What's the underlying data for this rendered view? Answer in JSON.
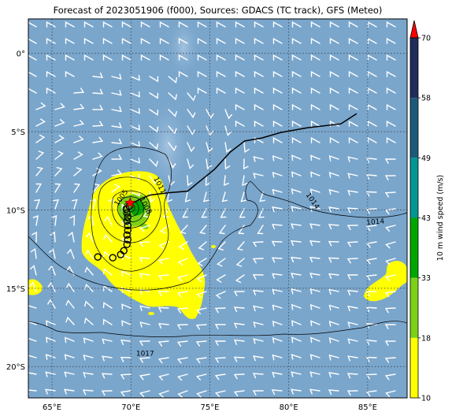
{
  "title": "Forecast of 2023051906 (f000), Sources: GDACS (TC track), GFS (Meteo)",
  "map": {
    "lon_range": [
      63.5,
      87.5
    ],
    "lat_range": [
      -22,
      2.2
    ],
    "lon_ticks": [
      {
        "lon": 65,
        "label": "65°E"
      },
      {
        "lon": 70,
        "label": "70°E"
      },
      {
        "lon": 75,
        "label": "75°E"
      },
      {
        "lon": 80,
        "label": "80°E"
      },
      {
        "lon": 85,
        "label": "85°E"
      }
    ],
    "lat_ticks": [
      {
        "lat": 0,
        "label": "0°"
      },
      {
        "lat": -5,
        "label": "5°S"
      },
      {
        "lat": -10,
        "label": "10°S"
      },
      {
        "lat": -15,
        "label": "15°S"
      },
      {
        "lat": -20,
        "label": "20°S"
      }
    ],
    "grid": "dotted",
    "background_color": "#7aa6cc",
    "tc_track": [
      [
        84.3,
        -3.85
      ],
      [
        83.3,
        -4.5
      ],
      [
        81.2,
        -4.75
      ],
      [
        79.5,
        -5.05
      ],
      [
        78.3,
        -5.4
      ],
      [
        77.2,
        -5.6
      ],
      [
        76.3,
        -6.3
      ],
      [
        75.3,
        -7.4
      ],
      [
        74.2,
        -8.3
      ],
      [
        73.6,
        -8.8
      ],
      [
        72.4,
        -8.9
      ],
      [
        71.2,
        -9.05
      ],
      [
        70.6,
        -9.3
      ],
      [
        70.05,
        -9.6
      ]
    ],
    "tc_current_position": {
      "lon": 69.95,
      "lat": -9.55,
      "marker": "red-star"
    },
    "tc_forecast_points": [
      [
        69.9,
        -9.75
      ],
      [
        69.7,
        -9.95
      ],
      [
        69.75,
        -10.2
      ],
      [
        69.8,
        -10.45
      ],
      [
        69.75,
        -10.7
      ],
      [
        69.8,
        -11.0
      ],
      [
        69.8,
        -11.3
      ],
      [
        69.75,
        -11.6
      ],
      [
        69.8,
        -11.9
      ],
      [
        69.75,
        -12.2
      ],
      [
        69.55,
        -12.6
      ],
      [
        69.35,
        -12.85
      ],
      [
        68.85,
        -13.05
      ],
      [
        67.9,
        -13.0
      ]
    ],
    "isobar_labels": [
      {
        "text": "1011",
        "lon": 71.7,
        "lat": -8.5,
        "angle": 62
      },
      {
        "text": "1005",
        "lon": 69.5,
        "lat": -9.3,
        "angle": -55
      },
      {
        "text": "1008",
        "lon": 70.8,
        "lat": -9.8,
        "angle": 62
      },
      {
        "text": "1014",
        "lon": 81.4,
        "lat": -9.5,
        "angle": 55
      },
      {
        "text": "1014",
        "lon": 85.5,
        "lat": -10.9,
        "angle": -5
      },
      {
        "text": "1017",
        "lon": 70.9,
        "lat": -19.3,
        "angle": 0
      }
    ]
  },
  "colorbar": {
    "label": "10 m wind speed (m/s)",
    "ticks": [
      "10",
      "18",
      "33",
      "43",
      "49",
      "58",
      "70"
    ],
    "colors": [
      "#ffff00",
      "#7cd117",
      "#00a600",
      "#009693",
      "#1c5a7c",
      "#1f2d5c"
    ],
    "extend_color": "#ff0000"
  }
}
